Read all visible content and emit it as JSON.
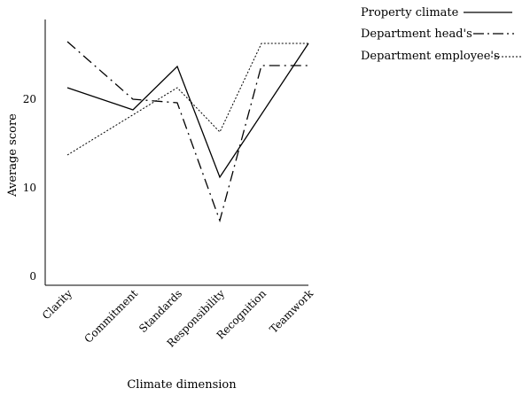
{
  "chart_data": {
    "type": "line",
    "title": "",
    "xlabel": "Climate dimension",
    "ylabel": "Average score",
    "ylim": [
      0,
      30
    ],
    "yticks": [
      0,
      10,
      20
    ],
    "grid": false,
    "legend_position": "top-right",
    "categories": [
      "Clarity",
      "Commitment",
      "Standards",
      "Responsibility",
      "Recognition",
      "Teamwork"
    ],
    "series": [
      {
        "name": "Property climate",
        "dash": "solid",
        "values": [
          21.2,
          18.7,
          23.6,
          11.1,
          null,
          26.2
        ]
      },
      {
        "name": "Department head's",
        "dash": "dashdot",
        "values": [
          26.4,
          19.9,
          19.5,
          6.2,
          23.7,
          23.7
        ]
      },
      {
        "name": "Department employee's",
        "dash": "dotted",
        "values": [
          13.6,
          null,
          21.2,
          16.2,
          26.2,
          26.2
        ]
      }
    ]
  }
}
